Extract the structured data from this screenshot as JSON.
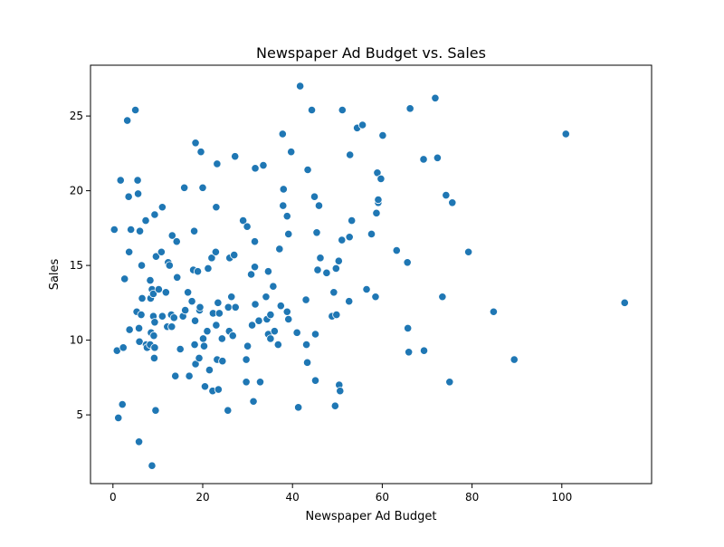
{
  "chart_data": {
    "type": "scatter",
    "title": "Newspaper Ad Budget vs. Sales",
    "xlabel": "Newspaper Ad Budget",
    "ylabel": "Sales",
    "xlim": [
      -5,
      120
    ],
    "ylim": [
      0.4,
      28.4
    ],
    "xticks": [
      0,
      20,
      40,
      60,
      80,
      100
    ],
    "xtick_labels": [
      "0",
      "20",
      "40",
      "60",
      "80",
      "100"
    ],
    "yticks": [
      5,
      10,
      15,
      20,
      25
    ],
    "ytick_labels": [
      "5",
      "10",
      "15",
      "20",
      "25"
    ],
    "grid": false,
    "legend": "none",
    "marker_color": "#1f77b4",
    "series": [
      {
        "points": [
          [
            0.3,
            17.4
          ],
          [
            0.9,
            9.3
          ],
          [
            1.2,
            4.8
          ],
          [
            1.7,
            20.7
          ],
          [
            2.1,
            5.7
          ],
          [
            2.3,
            9.5
          ],
          [
            2.6,
            14.1
          ],
          [
            3.2,
            24.7
          ],
          [
            3.5,
            19.6
          ],
          [
            3.6,
            15.9
          ],
          [
            3.7,
            10.7
          ],
          [
            4.0,
            17.4
          ],
          [
            5.0,
            25.4
          ],
          [
            5.3,
            11.9
          ],
          [
            5.5,
            20.7
          ],
          [
            5.6,
            19.8
          ],
          [
            5.8,
            10.8
          ],
          [
            5.8,
            3.2
          ],
          [
            5.9,
            9.9
          ],
          [
            6.0,
            17.3
          ],
          [
            6.3,
            11.7
          ],
          [
            6.4,
            15.0
          ],
          [
            6.5,
            12.8
          ],
          [
            7.3,
            18.0
          ],
          [
            7.4,
            9.7
          ],
          [
            7.6,
            9.5
          ],
          [
            8.3,
            9.7
          ],
          [
            8.3,
            14.0
          ],
          [
            8.4,
            12.8
          ],
          [
            8.5,
            10.5
          ],
          [
            8.7,
            1.6
          ],
          [
            8.7,
            13.4
          ],
          [
            9.0,
            11.6
          ],
          [
            9.0,
            13.1
          ],
          [
            9.1,
            10.3
          ],
          [
            9.2,
            8.8
          ],
          [
            9.3,
            18.4
          ],
          [
            9.3,
            11.2
          ],
          [
            9.3,
            9.5
          ],
          [
            9.5,
            5.3
          ],
          [
            9.6,
            15.6
          ],
          [
            10.2,
            13.4
          ],
          [
            10.8,
            15.9
          ],
          [
            11.0,
            18.9
          ],
          [
            11.0,
            11.6
          ],
          [
            11.8,
            13.2
          ],
          [
            12.1,
            10.9
          ],
          [
            12.3,
            15.2
          ],
          [
            12.6,
            15.0
          ],
          [
            13.0,
            11.7
          ],
          [
            13.1,
            10.9
          ],
          [
            13.2,
            17.0
          ],
          [
            13.6,
            11.5
          ],
          [
            13.9,
            7.6
          ],
          [
            14.2,
            16.6
          ],
          [
            14.3,
            14.2
          ],
          [
            15.0,
            9.4
          ],
          [
            15.6,
            11.6
          ],
          [
            15.9,
            20.2
          ],
          [
            16.1,
            12.0
          ],
          [
            16.7,
            13.2
          ],
          [
            17.0,
            7.6
          ],
          [
            17.6,
            12.6
          ],
          [
            17.9,
            14.7
          ],
          [
            18.1,
            17.3
          ],
          [
            18.2,
            9.7
          ],
          [
            18.3,
            11.3
          ],
          [
            18.4,
            23.2
          ],
          [
            18.4,
            8.4
          ],
          [
            18.9,
            14.6
          ],
          [
            19.2,
            8.8
          ],
          [
            19.3,
            12.0
          ],
          [
            19.4,
            12.2
          ],
          [
            19.6,
            22.6
          ],
          [
            20.0,
            20.2
          ],
          [
            20.1,
            10.1
          ],
          [
            20.3,
            9.6
          ],
          [
            20.5,
            6.9
          ],
          [
            21.0,
            10.6
          ],
          [
            21.2,
            14.8
          ],
          [
            21.5,
            8.0
          ],
          [
            22.0,
            15.5
          ],
          [
            22.2,
            6.6
          ],
          [
            22.3,
            11.8
          ],
          [
            22.9,
            15.9
          ],
          [
            23.0,
            18.9
          ],
          [
            23.0,
            11.0
          ],
          [
            23.2,
            21.8
          ],
          [
            23.2,
            8.7
          ],
          [
            23.4,
            12.5
          ],
          [
            23.5,
            6.7
          ],
          [
            23.7,
            11.8
          ],
          [
            24.3,
            10.1
          ],
          [
            24.4,
            8.6
          ],
          [
            25.6,
            5.3
          ],
          [
            25.7,
            12.2
          ],
          [
            25.9,
            10.6
          ],
          [
            26.0,
            15.5
          ],
          [
            26.4,
            12.9
          ],
          [
            26.7,
            10.3
          ],
          [
            27.0,
            15.7
          ],
          [
            27.2,
            22.3
          ],
          [
            27.3,
            12.2
          ],
          [
            29.0,
            18.0
          ],
          [
            29.7,
            8.7
          ],
          [
            29.7,
            7.2
          ],
          [
            29.9,
            17.6
          ],
          [
            30.0,
            9.6
          ],
          [
            30.8,
            14.4
          ],
          [
            31.0,
            11.0
          ],
          [
            31.3,
            5.9
          ],
          [
            31.6,
            16.6
          ],
          [
            31.6,
            14.9
          ],
          [
            31.7,
            12.4
          ],
          [
            31.7,
            21.5
          ],
          [
            32.5,
            11.3
          ],
          [
            32.8,
            7.2
          ],
          [
            33.5,
            21.7
          ],
          [
            34.1,
            12.9
          ],
          [
            34.3,
            11.4
          ],
          [
            34.6,
            14.6
          ],
          [
            34.6,
            10.4
          ],
          [
            35.1,
            11.7
          ],
          [
            35.1,
            10.1
          ],
          [
            35.7,
            13.6
          ],
          [
            36.0,
            10.6
          ],
          [
            36.8,
            9.7
          ],
          [
            37.1,
            16.1
          ],
          [
            37.4,
            12.3
          ],
          [
            37.8,
            23.8
          ],
          [
            37.9,
            19.0
          ],
          [
            38.0,
            20.1
          ],
          [
            38.8,
            18.3
          ],
          [
            38.8,
            11.9
          ],
          [
            39.1,
            17.1
          ],
          [
            39.1,
            11.4
          ],
          [
            39.7,
            22.6
          ],
          [
            41.0,
            10.5
          ],
          [
            41.3,
            5.5
          ],
          [
            41.7,
            27.0
          ],
          [
            43.0,
            12.7
          ],
          [
            43.1,
            9.7
          ],
          [
            43.3,
            8.5
          ],
          [
            43.4,
            21.4
          ],
          [
            44.3,
            25.4
          ],
          [
            44.9,
            19.6
          ],
          [
            45.1,
            10.4
          ],
          [
            45.1,
            7.3
          ],
          [
            45.4,
            17.2
          ],
          [
            45.6,
            14.7
          ],
          [
            45.9,
            19.0
          ],
          [
            46.2,
            15.5
          ],
          [
            47.6,
            14.5
          ],
          [
            48.8,
            11.6
          ],
          [
            49.2,
            13.2
          ],
          [
            49.5,
            5.6
          ],
          [
            49.7,
            14.8
          ],
          [
            49.8,
            11.7
          ],
          [
            50.3,
            15.3
          ],
          [
            50.4,
            7.0
          ],
          [
            50.6,
            6.6
          ],
          [
            51.0,
            16.7
          ],
          [
            51.1,
            25.4
          ],
          [
            52.6,
            12.6
          ],
          [
            52.7,
            16.9
          ],
          [
            52.8,
            22.4
          ],
          [
            53.2,
            18.0
          ],
          [
            54.4,
            24.2
          ],
          [
            55.6,
            24.4
          ],
          [
            56.5,
            13.4
          ],
          [
            57.6,
            17.1
          ],
          [
            58.5,
            12.9
          ],
          [
            58.7,
            18.5
          ],
          [
            58.9,
            21.2
          ],
          [
            59.1,
            19.2
          ],
          [
            59.1,
            19.4
          ],
          [
            59.7,
            20.8
          ],
          [
            60.1,
            23.7
          ],
          [
            63.2,
            16.0
          ],
          [
            65.6,
            15.2
          ],
          [
            65.7,
            10.8
          ],
          [
            65.9,
            9.2
          ],
          [
            66.2,
            25.5
          ],
          [
            69.2,
            22.1
          ],
          [
            69.3,
            9.3
          ],
          [
            71.8,
            26.2
          ],
          [
            72.3,
            22.2
          ],
          [
            73.4,
            12.9
          ],
          [
            74.2,
            19.7
          ],
          [
            75.0,
            7.2
          ],
          [
            75.6,
            19.2
          ],
          [
            79.2,
            15.9
          ],
          [
            84.8,
            11.9
          ],
          [
            89.4,
            8.7
          ],
          [
            100.9,
            23.8
          ],
          [
            114.0,
            12.5
          ]
        ]
      }
    ]
  }
}
